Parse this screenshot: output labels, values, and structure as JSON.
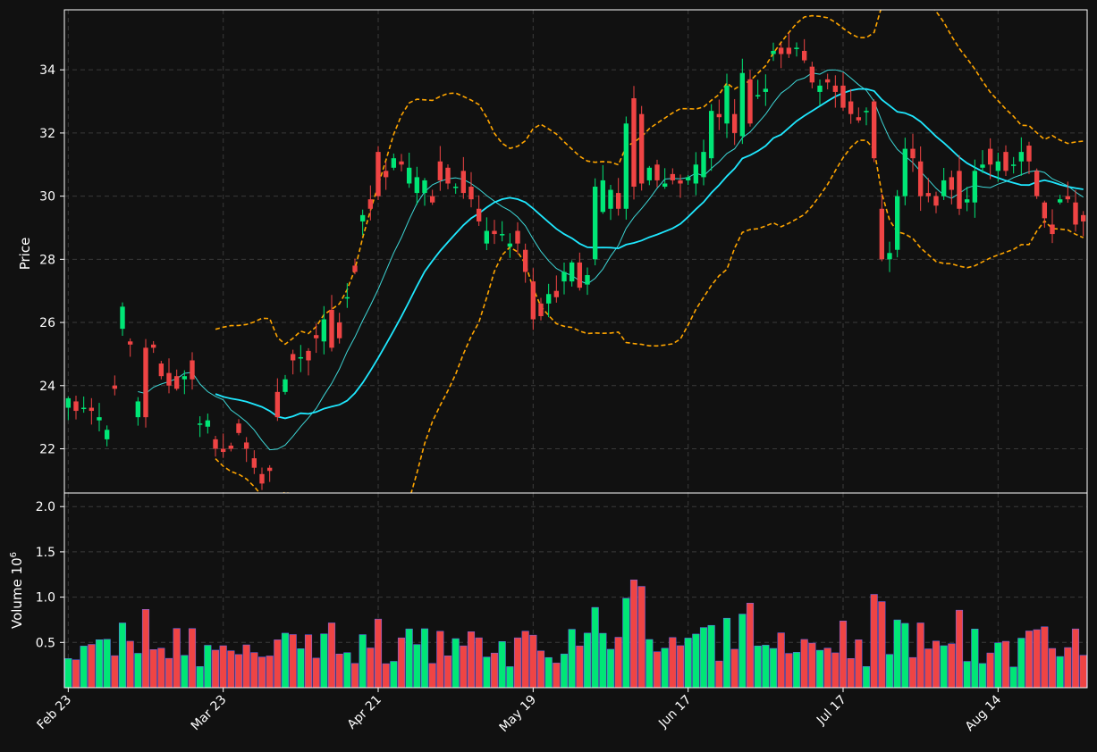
{
  "chart_data": {
    "type": "candlestick",
    "title": "",
    "panels": {
      "price": {
        "ylabel": "Price",
        "ylim": [
          20.6,
          35.9
        ],
        "yticks": [
          22,
          24,
          26,
          28,
          30,
          32,
          34
        ]
      },
      "volume": {
        "ylabel": "Volume",
        "ylabel_exponent": "10",
        "ylabel_exponent_power": "6",
        "ylim": [
          0,
          2.15
        ],
        "yticks": [
          0.5,
          1.0,
          1.5,
          2.0
        ],
        "ytick_labels": [
          "0.5",
          "1.0",
          "1.5",
          "2.0"
        ]
      }
    },
    "xtick_labels": [
      "Feb 23",
      "Mar 23",
      "Apr 21",
      "May 19",
      "Jun 17",
      "Jul 17",
      "Aug 14"
    ],
    "xtick_index": [
      0,
      20,
      40,
      60,
      80,
      100,
      120
    ],
    "grid": true,
    "colors": {
      "background": "#111111",
      "up": "#00e676",
      "down": "#ef4444",
      "ma_fast": "#3dd6d6",
      "ma_slow": "#1fe8ff",
      "bands": "#ffa500",
      "grid": "#3a3a3a",
      "text": "#ffffff"
    },
    "open": [
      23.3,
      23.5,
      23.3,
      23.3,
      22.9,
      22.3,
      24.0,
      25.8,
      25.4,
      23.0,
      25.2,
      25.3,
      24.7,
      24.4,
      24.3,
      24.2,
      24.8,
      22.8,
      22.7,
      22.3,
      22.0,
      22.1,
      22.8,
      22.2,
      21.7,
      21.2,
      21.4,
      23.8,
      23.8,
      25.0,
      24.9,
      25.1,
      25.6,
      25.4,
      26.4,
      26.0,
      26.8,
      27.8,
      29.2,
      29.9,
      31.4,
      30.8,
      30.9,
      31.1,
      30.4,
      30.1,
      30.1,
      30.0,
      31.1,
      30.9,
      30.3,
      30.8,
      30.3,
      29.6,
      28.5,
      28.9,
      28.8,
      28.4,
      28.9,
      28.3,
      27.3,
      26.6,
      26.6,
      27.0,
      27.3,
      27.3,
      27.9,
      27.2,
      28.0,
      29.5,
      29.6,
      30.1,
      29.6,
      33.1,
      32.6,
      30.5,
      31.0,
      30.3,
      30.7,
      30.5,
      30.5,
      30.4,
      30.6,
      31.2,
      32.6,
      32.3,
      32.6,
      31.9,
      33.7,
      33.2,
      33.3,
      34.5,
      34.7,
      34.7,
      34.7,
      34.6,
      34.1,
      33.3,
      33.7,
      33.5,
      33.5,
      33.0,
      32.5,
      32.7,
      33.0,
      29.6,
      28.0,
      28.3,
      30.0,
      31.5,
      31.1,
      30.1,
      30.0,
      30.0,
      30.6,
      30.8,
      29.8,
      29.8,
      30.9,
      31.5,
      30.8,
      31.4,
      31.0,
      31.1,
      31.6,
      30.8,
      29.8,
      29.1,
      29.8,
      30.0,
      29.8,
      29.4
    ],
    "close": [
      23.6,
      23.2,
      23.3,
      23.2,
      23.0,
      22.6,
      23.9,
      26.5,
      25.3,
      23.5,
      23.0,
      25.2,
      24.3,
      24.0,
      23.9,
      24.3,
      24.2,
      22.8,
      22.9,
      22.0,
      21.9,
      22.0,
      22.5,
      22.0,
      21.4,
      20.9,
      21.3,
      23.0,
      24.2,
      24.8,
      24.9,
      24.8,
      25.5,
      26.1,
      25.2,
      25.5,
      26.8,
      27.6,
      29.4,
      29.6,
      30.0,
      30.6,
      31.2,
      31.0,
      30.9,
      30.6,
      30.5,
      29.8,
      30.5,
      30.4,
      30.3,
      30.1,
      29.9,
      29.2,
      28.9,
      28.8,
      28.8,
      28.5,
      28.5,
      27.6,
      26.1,
      26.2,
      26.9,
      26.8,
      27.6,
      27.9,
      27.1,
      27.5,
      30.3,
      30.5,
      30.2,
      29.6,
      32.3,
      30.3,
      30.4,
      30.9,
      30.5,
      30.4,
      30.5,
      30.4,
      30.6,
      31.0,
      31.4,
      32.7,
      32.5,
      33.5,
      32.0,
      33.9,
      32.3,
      33.2,
      33.4,
      34.6,
      34.5,
      34.5,
      34.7,
      34.3,
      33.6,
      33.5,
      33.6,
      33.3,
      32.8,
      32.6,
      32.4,
      32.7,
      31.2,
      28.0,
      28.2,
      30.0,
      31.5,
      31.2,
      30.0,
      30.0,
      29.7,
      30.5,
      30.2,
      29.6,
      29.9,
      30.8,
      31.0,
      31.0,
      31.1,
      30.8,
      31.0,
      31.4,
      31.1,
      30.0,
      29.3,
      28.8,
      29.9,
      29.9,
      29.1,
      29.2
    ]
  }
}
